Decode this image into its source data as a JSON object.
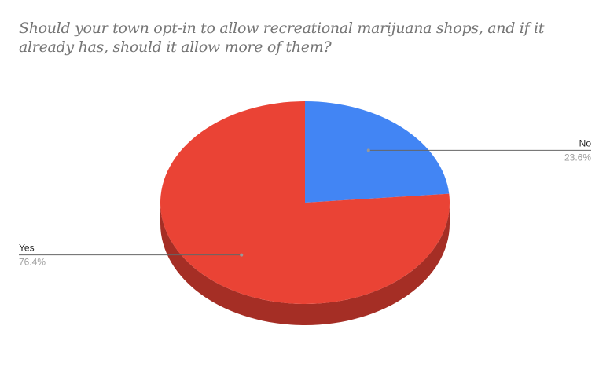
{
  "chart_data": {
    "type": "pie",
    "style": "3d",
    "title": "Should your town opt-in to allow recreational marijuana shops, and if it already has, should it allow more of them?",
    "slices": [
      {
        "label": "No",
        "value": 23.6,
        "pct_label": "23.6%",
        "color": "#4285f4",
        "side": "right"
      },
      {
        "label": "Yes",
        "value": 76.4,
        "pct_label": "76.4%",
        "color": "#ea4335",
        "side_color": "#a52e25",
        "side": "left"
      }
    ],
    "legend": "labeled leader lines"
  }
}
